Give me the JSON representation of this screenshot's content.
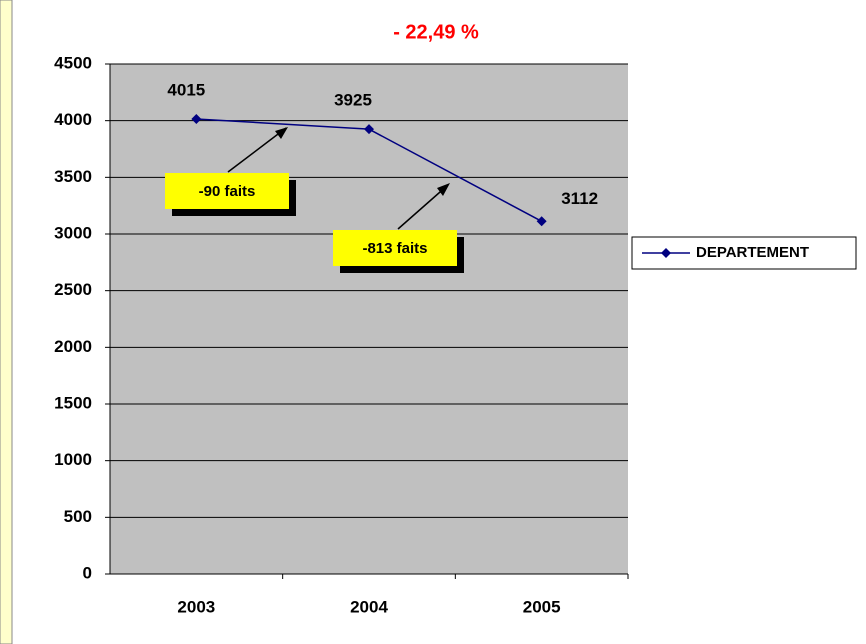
{
  "chart_data": {
    "type": "line",
    "title": "- 22,49 %",
    "categories": [
      "2003",
      "2004",
      "2005"
    ],
    "series": [
      {
        "name": "DEPARTEMENT",
        "color": "#000080",
        "values": [
          4015,
          3925,
          3112
        ]
      }
    ],
    "ylim": [
      0,
      4500
    ],
    "yticks": [
      0,
      500,
      1000,
      1500,
      2000,
      2500,
      3000,
      3500,
      4000,
      4500
    ],
    "grid": true,
    "legend": "right",
    "annotations": [
      "-90 faits",
      "-813 faits"
    ]
  }
}
